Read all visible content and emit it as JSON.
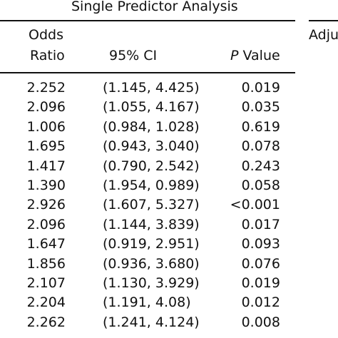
{
  "header": {
    "group_title": "Single Predictor Analysis",
    "adjusted_partial": "Adju",
    "odds_ratio_line1": "Odds",
    "odds_ratio_line2": "Ratio",
    "ci_label": "95% CI",
    "p_label_italic": "P",
    "p_label_rest": " Value"
  },
  "rows": [
    {
      "odds_ratio": "2.252",
      "ci": "(1.145, 4.425)",
      "p_value": "0.019"
    },
    {
      "odds_ratio": "2.096",
      "ci": "(1.055, 4.167)",
      "p_value": "0.035"
    },
    {
      "odds_ratio": "1.006",
      "ci": "(0.984, 1.028)",
      "p_value": "0.619"
    },
    {
      "odds_ratio": "1.695",
      "ci": "(0.943, 3.040)",
      "p_value": "0.078"
    },
    {
      "odds_ratio": "1.417",
      "ci": "(0.790, 2.542)",
      "p_value": "0.243"
    },
    {
      "odds_ratio": "1.390",
      "ci": "(1.954, 0.989)",
      "p_value": "0.058"
    },
    {
      "odds_ratio": "2.926",
      "ci": "(1.607, 5.327)",
      "p_value": "<0.001"
    },
    {
      "odds_ratio": "2.096",
      "ci": "(1.144, 3.839)",
      "p_value": "0.017"
    },
    {
      "odds_ratio": "1.647",
      "ci": "(0.919, 2.951)",
      "p_value": "0.093"
    },
    {
      "odds_ratio": "1.856",
      "ci": "(0.936, 3.680)",
      "p_value": "0.076"
    },
    {
      "odds_ratio": "2.107",
      "ci": "(1.130, 3.929)",
      "p_value": "0.019"
    },
    {
      "odds_ratio": "2.204",
      "ci": "(1.191, 4.08)",
      "p_value": "0.012"
    },
    {
      "odds_ratio": "2.262",
      "ci": "(1.241, 4.124)",
      "p_value": "0.008"
    }
  ]
}
